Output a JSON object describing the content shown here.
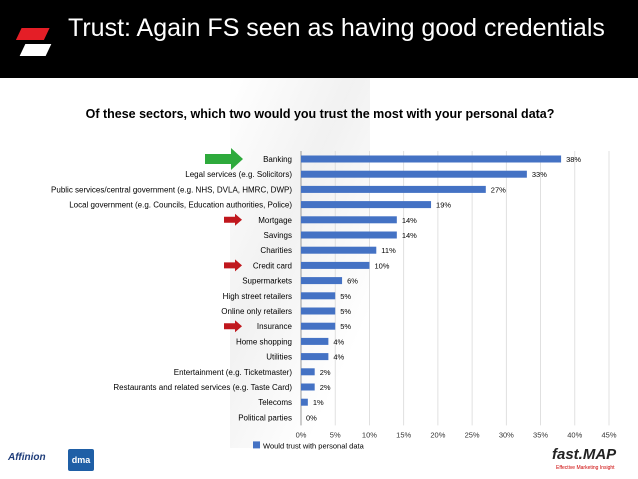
{
  "slide": {
    "title": "Trust:  Again FS seen as having good credentials"
  },
  "chart_data": {
    "type": "bar",
    "orientation": "horizontal",
    "title": "Of these sectors, which two would you trust the most with your personal data?",
    "categories": [
      "Banking",
      "Legal services (e.g. Solicitors)",
      "Public services/central government (e.g. NHS, DVLA, HMRC, DWP)",
      "Local government (e.g. Councils, Education authorities, Police)",
      "Mortgage",
      "Savings",
      "Charities",
      "Credit card",
      "Supermarkets",
      "High street retailers",
      "Online only retailers",
      "Insurance",
      "Home shopping",
      "Utilities",
      "Entertainment (e.g. Ticketmaster)",
      "Restaurants and related services (e.g. Taste Card)",
      "Telecoms",
      "Political parties"
    ],
    "values": [
      38,
      33,
      27,
      19,
      14,
      14,
      11,
      10,
      6,
      5,
      5,
      5,
      4,
      4,
      2,
      2,
      1,
      0
    ],
    "value_labels": [
      "38%",
      "33%",
      "27%",
      "19%",
      "14%",
      "14%",
      "11%",
      "10%",
      "6%",
      "5%",
      "5%",
      "5%",
      "4%",
      "4%",
      "2%",
      "2%",
      "1%",
      "0%"
    ],
    "series_name": "Would trust with personal data",
    "xlim": [
      0,
      45
    ],
    "x_ticks": [
      "0%",
      "5%",
      "10%",
      "15%",
      "20%",
      "25%",
      "30%",
      "35%",
      "40%",
      "45%"
    ],
    "legend_position": "bottom",
    "bar_color": "#4472c4",
    "highlights": [
      {
        "category": "Banking",
        "marker": "green-arrow"
      },
      {
        "category": "Mortgage",
        "marker": "red-arrow"
      },
      {
        "category": "Credit card",
        "marker": "red-arrow"
      },
      {
        "category": "Insurance",
        "marker": "red-arrow"
      }
    ]
  },
  "footer": {
    "logo_left": "Affinion",
    "logo_mid": "dma",
    "logo_right": "fast.MAP",
    "logo_right_tagline": "Effective Marketing Insight"
  },
  "colors": {
    "header_bg": "#000000",
    "accent_red": "#e41e26",
    "green_arrow": "#2eaa3c",
    "red_arrow": "#c0171d"
  }
}
